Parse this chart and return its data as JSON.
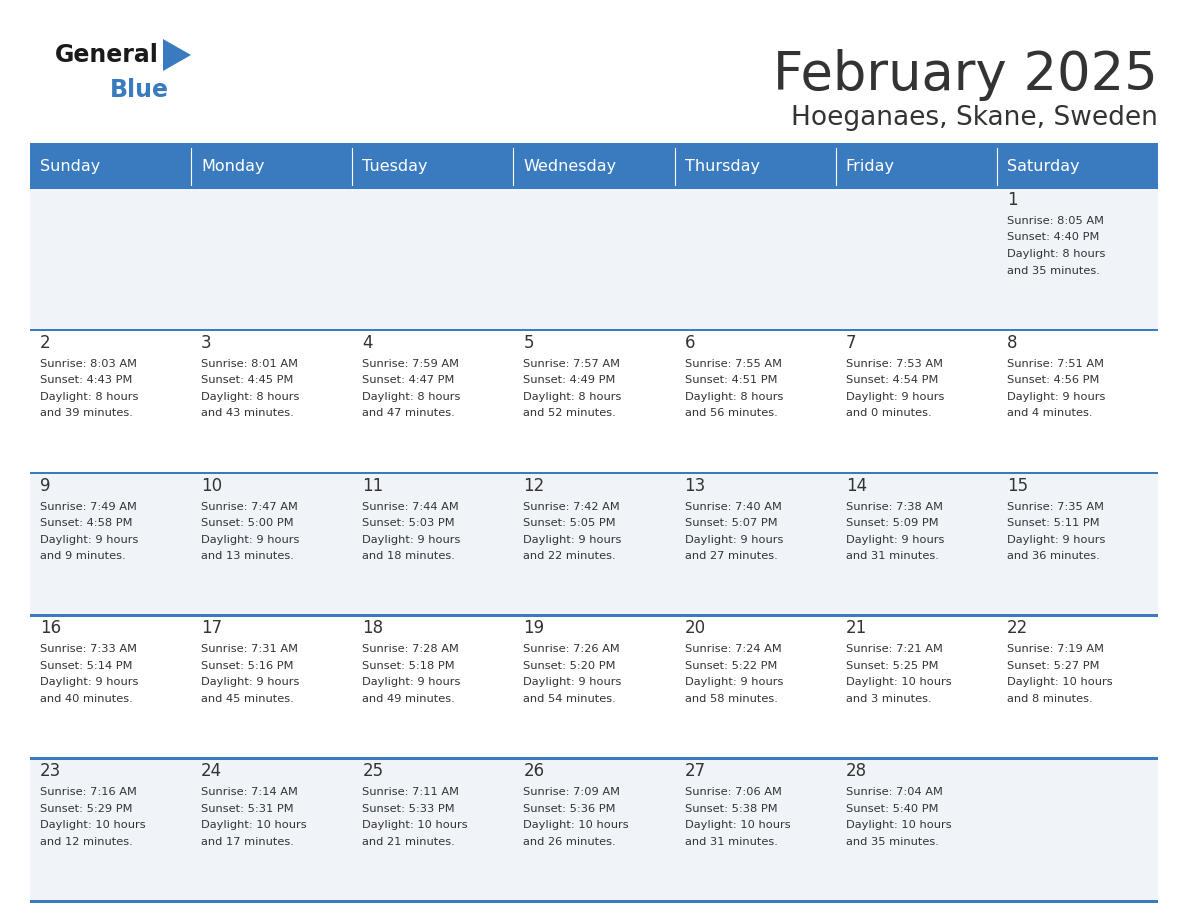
{
  "title": "February 2025",
  "subtitle": "Hoeganaes, Skane, Sweden",
  "header_color": "#3a7bbf",
  "header_text_color": "#ffffff",
  "odd_row_color": "#f0f4f8",
  "even_row_color": "#ffffff",
  "border_color": "#3a7bbf",
  "text_color": "#333333",
  "days_of_week": [
    "Sunday",
    "Monday",
    "Tuesday",
    "Wednesday",
    "Thursday",
    "Friday",
    "Saturday"
  ],
  "calendar": [
    [
      {
        "day": "",
        "info": ""
      },
      {
        "day": "",
        "info": ""
      },
      {
        "day": "",
        "info": ""
      },
      {
        "day": "",
        "info": ""
      },
      {
        "day": "",
        "info": ""
      },
      {
        "day": "",
        "info": ""
      },
      {
        "day": "1",
        "info": "Sunrise: 8:05 AM\nSunset: 4:40 PM\nDaylight: 8 hours\nand 35 minutes."
      }
    ],
    [
      {
        "day": "2",
        "info": "Sunrise: 8:03 AM\nSunset: 4:43 PM\nDaylight: 8 hours\nand 39 minutes."
      },
      {
        "day": "3",
        "info": "Sunrise: 8:01 AM\nSunset: 4:45 PM\nDaylight: 8 hours\nand 43 minutes."
      },
      {
        "day": "4",
        "info": "Sunrise: 7:59 AM\nSunset: 4:47 PM\nDaylight: 8 hours\nand 47 minutes."
      },
      {
        "day": "5",
        "info": "Sunrise: 7:57 AM\nSunset: 4:49 PM\nDaylight: 8 hours\nand 52 minutes."
      },
      {
        "day": "6",
        "info": "Sunrise: 7:55 AM\nSunset: 4:51 PM\nDaylight: 8 hours\nand 56 minutes."
      },
      {
        "day": "7",
        "info": "Sunrise: 7:53 AM\nSunset: 4:54 PM\nDaylight: 9 hours\nand 0 minutes."
      },
      {
        "day": "8",
        "info": "Sunrise: 7:51 AM\nSunset: 4:56 PM\nDaylight: 9 hours\nand 4 minutes."
      }
    ],
    [
      {
        "day": "9",
        "info": "Sunrise: 7:49 AM\nSunset: 4:58 PM\nDaylight: 9 hours\nand 9 minutes."
      },
      {
        "day": "10",
        "info": "Sunrise: 7:47 AM\nSunset: 5:00 PM\nDaylight: 9 hours\nand 13 minutes."
      },
      {
        "day": "11",
        "info": "Sunrise: 7:44 AM\nSunset: 5:03 PM\nDaylight: 9 hours\nand 18 minutes."
      },
      {
        "day": "12",
        "info": "Sunrise: 7:42 AM\nSunset: 5:05 PM\nDaylight: 9 hours\nand 22 minutes."
      },
      {
        "day": "13",
        "info": "Sunrise: 7:40 AM\nSunset: 5:07 PM\nDaylight: 9 hours\nand 27 minutes."
      },
      {
        "day": "14",
        "info": "Sunrise: 7:38 AM\nSunset: 5:09 PM\nDaylight: 9 hours\nand 31 minutes."
      },
      {
        "day": "15",
        "info": "Sunrise: 7:35 AM\nSunset: 5:11 PM\nDaylight: 9 hours\nand 36 minutes."
      }
    ],
    [
      {
        "day": "16",
        "info": "Sunrise: 7:33 AM\nSunset: 5:14 PM\nDaylight: 9 hours\nand 40 minutes."
      },
      {
        "day": "17",
        "info": "Sunrise: 7:31 AM\nSunset: 5:16 PM\nDaylight: 9 hours\nand 45 minutes."
      },
      {
        "day": "18",
        "info": "Sunrise: 7:28 AM\nSunset: 5:18 PM\nDaylight: 9 hours\nand 49 minutes."
      },
      {
        "day": "19",
        "info": "Sunrise: 7:26 AM\nSunset: 5:20 PM\nDaylight: 9 hours\nand 54 minutes."
      },
      {
        "day": "20",
        "info": "Sunrise: 7:24 AM\nSunset: 5:22 PM\nDaylight: 9 hours\nand 58 minutes."
      },
      {
        "day": "21",
        "info": "Sunrise: 7:21 AM\nSunset: 5:25 PM\nDaylight: 10 hours\nand 3 minutes."
      },
      {
        "day": "22",
        "info": "Sunrise: 7:19 AM\nSunset: 5:27 PM\nDaylight: 10 hours\nand 8 minutes."
      }
    ],
    [
      {
        "day": "23",
        "info": "Sunrise: 7:16 AM\nSunset: 5:29 PM\nDaylight: 10 hours\nand 12 minutes."
      },
      {
        "day": "24",
        "info": "Sunrise: 7:14 AM\nSunset: 5:31 PM\nDaylight: 10 hours\nand 17 minutes."
      },
      {
        "day": "25",
        "info": "Sunrise: 7:11 AM\nSunset: 5:33 PM\nDaylight: 10 hours\nand 21 minutes."
      },
      {
        "day": "26",
        "info": "Sunrise: 7:09 AM\nSunset: 5:36 PM\nDaylight: 10 hours\nand 26 minutes."
      },
      {
        "day": "27",
        "info": "Sunrise: 7:06 AM\nSunset: 5:38 PM\nDaylight: 10 hours\nand 31 minutes."
      },
      {
        "day": "28",
        "info": "Sunrise: 7:04 AM\nSunset: 5:40 PM\nDaylight: 10 hours\nand 35 minutes."
      },
      {
        "day": "",
        "info": ""
      }
    ]
  ],
  "logo_general_color": "#1a1a1a",
  "logo_blue_color": "#3a7bbf",
  "logo_triangle_color": "#3a7bbf"
}
